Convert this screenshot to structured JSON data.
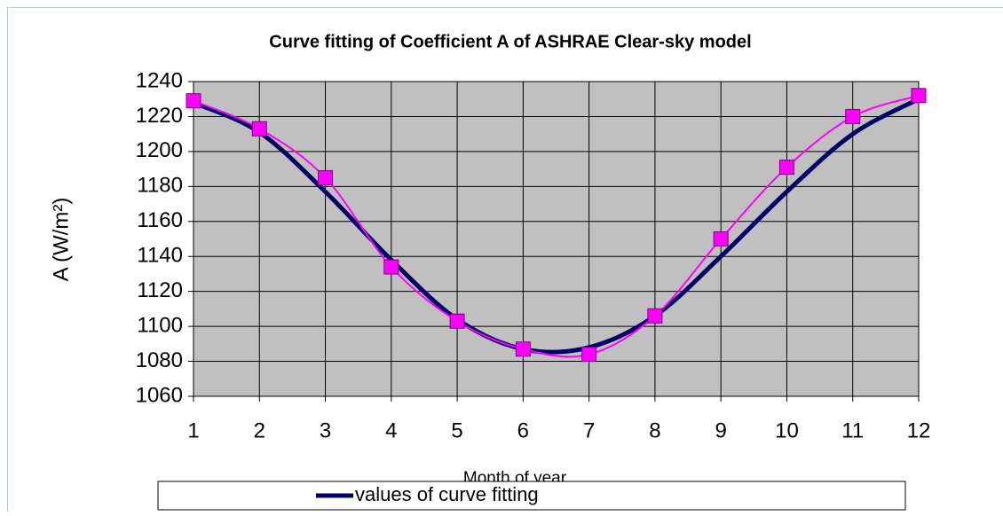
{
  "chart_data": {
    "type": "line",
    "title": "Curve fitting of Coefficient A of ASHRAE Clear-sky model",
    "x_label": "Month of year",
    "y_label": "A (W/m²)",
    "x": [
      1,
      2,
      3,
      4,
      5,
      6,
      7,
      8,
      9,
      10,
      11,
      12
    ],
    "xlim": [
      1,
      12
    ],
    "xticks": [
      1,
      2,
      3,
      4,
      5,
      6,
      7,
      8,
      9,
      10,
      11,
      12
    ],
    "ylim": [
      1060,
      1240
    ],
    "yticks": [
      1060,
      1080,
      1100,
      1120,
      1140,
      1160,
      1180,
      1200,
      1220,
      1240
    ],
    "grid": true,
    "legend": "bottom",
    "series": [
      {
        "color": "#ff00ff",
        "marker": "square",
        "values": [
          1229,
          1213,
          1185,
          1134,
          1103,
          1087,
          1084,
          1106,
          1150,
          1191,
          1220,
          1232
        ]
      },
      {
        "name": "values of curve fitting",
        "color": "#000066",
        "values": [
          1228,
          1211,
          1177,
          1138,
          1104,
          1087,
          1088,
          1106,
          1140,
          1177,
          1210,
          1230
        ]
      }
    ]
  }
}
